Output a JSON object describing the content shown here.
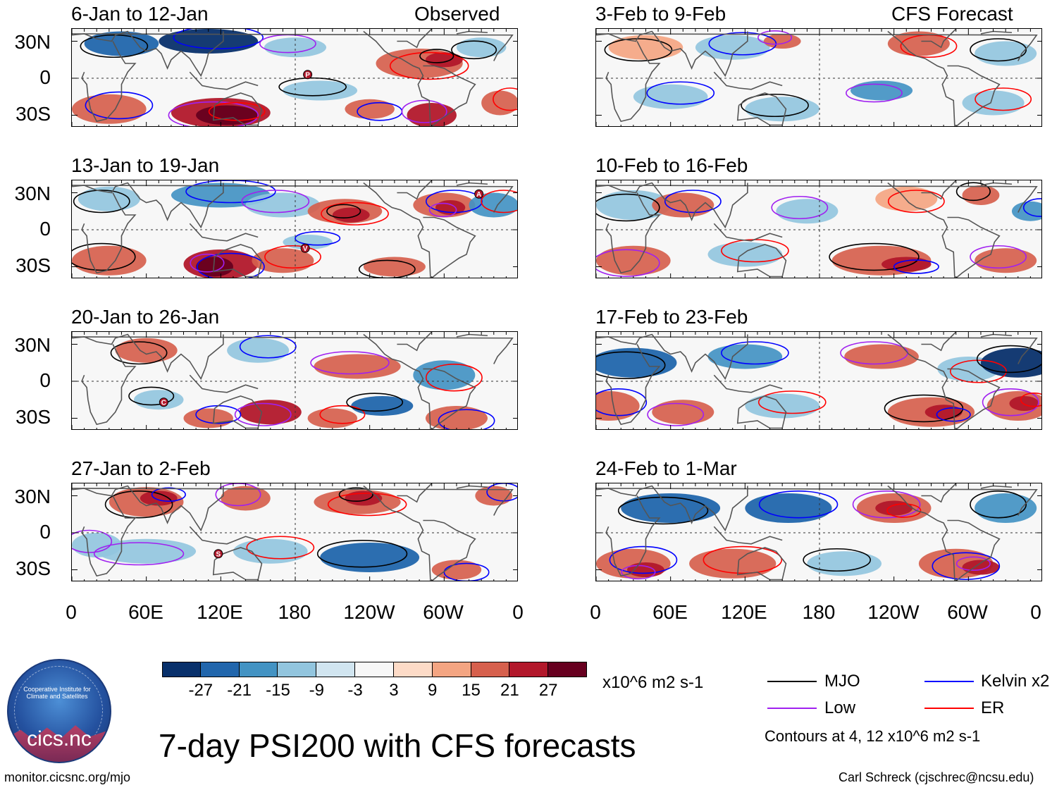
{
  "panels": [
    {
      "title": "6-Jan to 12-Jan",
      "tag": "Observed",
      "marker": "P",
      "marker_lon": 190,
      "marker_lat": 3
    },
    {
      "title": "13-Jan to 19-Jan",
      "tag": "",
      "marker": "A",
      "marker_lon": 328,
      "marker_lat": 29,
      "marker2": "V",
      "marker2_lon": 188,
      "marker2_lat": -15
    },
    {
      "title": "20-Jan to 26-Jan",
      "tag": "",
      "marker": "C",
      "marker_lon": 74,
      "marker_lat": -17
    },
    {
      "title": "27-Jan to 2-Feb",
      "tag": "",
      "marker": "S",
      "marker_lon": 118,
      "marker_lat": -17
    },
    {
      "title": "3-Feb to 9-Feb",
      "tag": "CFS Forecast"
    },
    {
      "title": "10-Feb to 16-Feb",
      "tag": ""
    },
    {
      "title": "17-Feb to 23-Feb",
      "tag": ""
    },
    {
      "title": "24-Feb to 1-Mar",
      "tag": ""
    }
  ],
  "lat_labels": [
    "30N",
    "0",
    "30S"
  ],
  "lon_labels": [
    "0",
    "60E",
    "120E",
    "180",
    "120W",
    "60W",
    "0"
  ],
  "colorbar": {
    "colors": [
      "#08306b",
      "#2166ac",
      "#4393c3",
      "#92c5de",
      "#d1e5f0",
      "#f7f7f7",
      "#fddbc7",
      "#f4a582",
      "#d6604d",
      "#b2182b",
      "#67001f"
    ],
    "labels": [
      "-27",
      "-21",
      "-15",
      "-9",
      "-3",
      "3",
      "9",
      "15",
      "21",
      "27"
    ],
    "units": "x10^6 m2 s-1"
  },
  "title": "7-day PSI200 with CFS forecasts",
  "legend": {
    "items": [
      {
        "label": "MJO",
        "color": "#000000"
      },
      {
        "label": "Kelvin x2",
        "color": "#0000ff"
      },
      {
        "label": "Low",
        "color": "#a020f0"
      },
      {
        "label": "ER",
        "color": "#ff0000"
      }
    ],
    "contours_note": "Contours at 4, 12 x10^6 m2 s-1"
  },
  "logo_text": "cics.nc",
  "logo_ring_text": "Cooperative Institute for Climate and Satellites",
  "footer_left": "monitor.cicsnc.org/mjo",
  "footer_right": "Carl Schreck (cjschrec@ncsu.edu)"
}
